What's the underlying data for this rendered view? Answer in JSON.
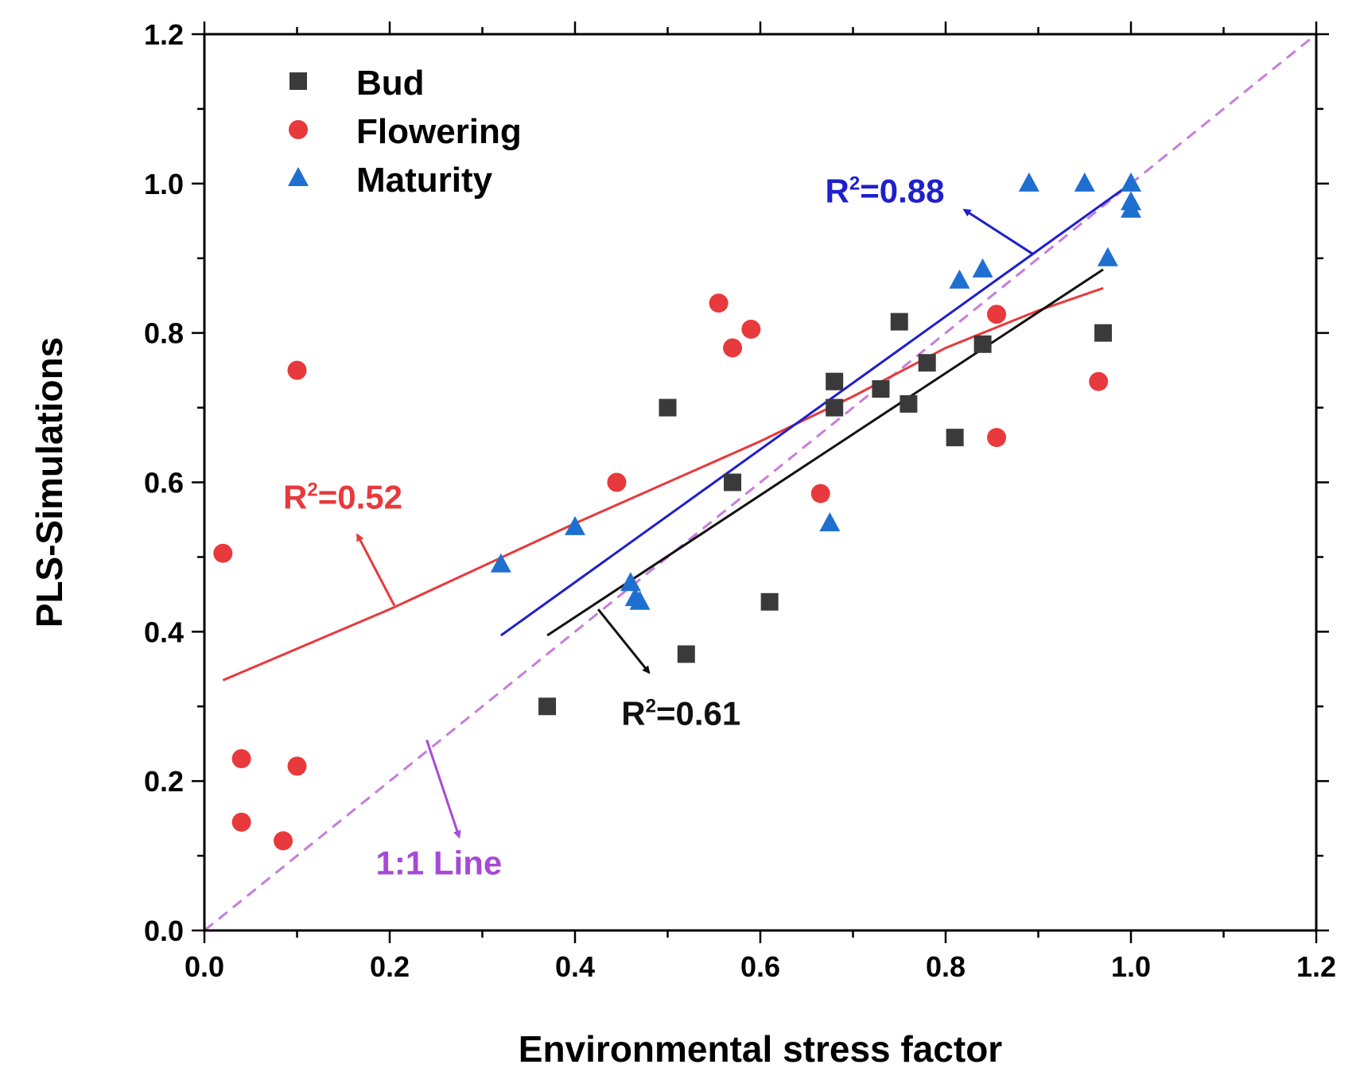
{
  "chart_data": {
    "type": "scatter",
    "title": "",
    "xlabel": "Environmental stress factor",
    "ylabel": "PLS-Simulations",
    "xlim": [
      0.0,
      1.2
    ],
    "ylim": [
      0.0,
      1.2
    ],
    "xticks": [
      "0.0",
      "0.2",
      "0.4",
      "0.6",
      "0.8",
      "1.0",
      "1.2"
    ],
    "yticks": [
      "0.0",
      "0.2",
      "0.4",
      "0.6",
      "0.8",
      "1.0",
      "1.2"
    ],
    "grid": false,
    "legend_position": "top-left",
    "series": [
      {
        "name": "Bud",
        "marker": "square",
        "color": "#3a3a3a",
        "points": [
          [
            0.37,
            0.3
          ],
          [
            0.5,
            0.7
          ],
          [
            0.52,
            0.37
          ],
          [
            0.57,
            0.6
          ],
          [
            0.61,
            0.44
          ],
          [
            0.68,
            0.735
          ],
          [
            0.68,
            0.7
          ],
          [
            0.73,
            0.725
          ],
          [
            0.75,
            0.815
          ],
          [
            0.76,
            0.705
          ],
          [
            0.78,
            0.76
          ],
          [
            0.81,
            0.66
          ],
          [
            0.84,
            0.785
          ],
          [
            0.97,
            0.8
          ]
        ]
      },
      {
        "name": "Flowering",
        "marker": "circle",
        "color": "#e8393c",
        "points": [
          [
            0.02,
            0.505
          ],
          [
            0.04,
            0.23
          ],
          [
            0.04,
            0.145
          ],
          [
            0.085,
            0.12
          ],
          [
            0.1,
            0.75
          ],
          [
            0.1,
            0.22
          ],
          [
            0.445,
            0.6
          ],
          [
            0.555,
            0.84
          ],
          [
            0.57,
            0.78
          ],
          [
            0.59,
            0.805
          ],
          [
            0.665,
            0.585
          ],
          [
            0.855,
            0.825
          ],
          [
            0.855,
            0.66
          ],
          [
            0.965,
            0.735
          ]
        ]
      },
      {
        "name": "Maturity",
        "marker": "triangle",
        "color": "#1f6fd1",
        "points": [
          [
            0.32,
            0.49
          ],
          [
            0.4,
            0.54
          ],
          [
            0.46,
            0.465
          ],
          [
            0.465,
            0.445
          ],
          [
            0.47,
            0.44
          ],
          [
            0.675,
            0.545
          ],
          [
            0.815,
            0.87
          ],
          [
            0.84,
            0.885
          ],
          [
            0.89,
            1.0
          ],
          [
            0.95,
            1.0
          ],
          [
            0.975,
            0.9
          ],
          [
            1.0,
            1.0
          ],
          [
            1.0,
            0.975
          ],
          [
            1.0,
            0.965
          ]
        ]
      }
    ],
    "fit_lines": [
      {
        "series": "Flowering",
        "color": "#e8393c",
        "curve": [
          [
            0.02,
            0.335
          ],
          [
            0.2,
            0.43
          ],
          [
            0.4,
            0.545
          ],
          [
            0.6,
            0.655
          ],
          [
            0.7,
            0.715
          ],
          [
            0.8,
            0.78
          ],
          [
            0.9,
            0.83
          ],
          [
            0.97,
            0.86
          ]
        ]
      },
      {
        "series": "Bud",
        "color": "#111111",
        "curve": [
          [
            0.37,
            0.395
          ],
          [
            0.97,
            0.885
          ]
        ]
      },
      {
        "series": "Maturity",
        "color": "#1f1fcc",
        "curve": [
          [
            0.32,
            0.395
          ],
          [
            1.0,
            1.0
          ]
        ]
      }
    ],
    "one_to_one_line": {
      "color": "#c77ddb",
      "from": [
        0.0,
        0.0
      ],
      "to": [
        1.2,
        1.2
      ]
    },
    "annotations": [
      {
        "text": "R²=0.52",
        "prefix": "R",
        "sup": "2",
        "suffix": "=0.52",
        "color": "#e8393c",
        "x": 0.085,
        "y": 0.565,
        "arrow_from": [
          0.205,
          0.435
        ],
        "arrow_to": [
          0.165,
          0.53
        ]
      },
      {
        "text": "R²=0.61",
        "prefix": "R",
        "sup": "2",
        "suffix": "=0.61",
        "color": "#111111",
        "x": 0.45,
        "y": 0.275,
        "arrow_from": [
          0.425,
          0.43
        ],
        "arrow_to": [
          0.48,
          0.345
        ]
      },
      {
        "text": "R²=0.88",
        "prefix": "R",
        "sup": "2",
        "suffix": "=0.88",
        "color": "#1f1fcc",
        "x": 0.67,
        "y": 0.975,
        "arrow_from": [
          0.895,
          0.905
        ],
        "arrow_to": [
          0.82,
          0.965
        ]
      },
      {
        "text": "1:1 Line",
        "prefix": "1:1 Line",
        "sup": "",
        "suffix": "",
        "color": "#a64ad6",
        "x": 0.185,
        "y": 0.075,
        "arrow_from": [
          0.24,
          0.255
        ],
        "arrow_to": [
          0.275,
          0.125
        ]
      }
    ]
  }
}
